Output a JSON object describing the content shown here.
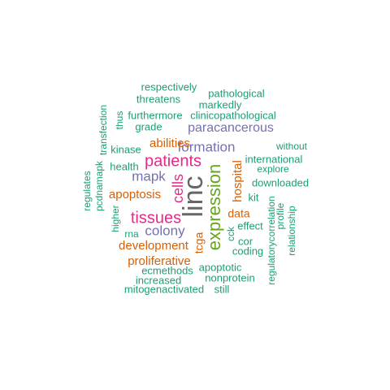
{
  "colors": {
    "teal": "#1b9e77",
    "orange": "#d95f02",
    "purple": "#7570b3",
    "pink": "#e7298a",
    "green": "#66a61e",
    "gray": "#666666"
  },
  "words": [
    {
      "text": "linc",
      "color": "gray"
    },
    {
      "text": "expression",
      "color": "green"
    },
    {
      "text": "patients",
      "color": "pink"
    },
    {
      "text": "tissues",
      "color": "pink"
    },
    {
      "text": "cells",
      "color": "pink"
    },
    {
      "text": "formation",
      "color": "purple"
    },
    {
      "text": "paracancerous",
      "color": "purple"
    },
    {
      "text": "colony",
      "color": "purple"
    },
    {
      "text": "mapk",
      "color": "purple"
    },
    {
      "text": "apoptosis",
      "color": "orange"
    },
    {
      "text": "development",
      "color": "orange"
    },
    {
      "text": "proliferative",
      "color": "orange"
    },
    {
      "text": "abilities",
      "color": "orange"
    },
    {
      "text": "hospital",
      "color": "orange"
    },
    {
      "text": "data",
      "color": "orange"
    },
    {
      "text": "tcga",
      "color": "orange"
    },
    {
      "text": "respectively",
      "color": "teal"
    },
    {
      "text": "pathological",
      "color": "teal"
    },
    {
      "text": "threatens",
      "color": "teal"
    },
    {
      "text": "markedly",
      "color": "teal"
    },
    {
      "text": "furthermore",
      "color": "teal"
    },
    {
      "text": "clinicopathological",
      "color": "teal"
    },
    {
      "text": "grade",
      "color": "teal"
    },
    {
      "text": "thus",
      "color": "teal"
    },
    {
      "text": "transfection",
      "color": "teal"
    },
    {
      "text": "kinase",
      "color": "teal"
    },
    {
      "text": "health",
      "color": "teal"
    },
    {
      "text": "pcdnamapk",
      "color": "teal"
    },
    {
      "text": "regulates",
      "color": "teal"
    },
    {
      "text": "higher",
      "color": "teal"
    },
    {
      "text": "rna",
      "color": "teal"
    },
    {
      "text": "without",
      "color": "teal"
    },
    {
      "text": "international",
      "color": "teal"
    },
    {
      "text": "explore",
      "color": "teal"
    },
    {
      "text": "downloaded",
      "color": "teal"
    },
    {
      "text": "kit",
      "color": "teal"
    },
    {
      "text": "effect",
      "color": "teal"
    },
    {
      "text": "cck",
      "color": "teal"
    },
    {
      "text": "cor",
      "color": "teal"
    },
    {
      "text": "coding",
      "color": "teal"
    },
    {
      "text": "profile",
      "color": "teal"
    },
    {
      "text": "relationship",
      "color": "teal"
    },
    {
      "text": "regulatorycorrelation",
      "color": "teal"
    },
    {
      "text": "ecmethods",
      "color": "teal"
    },
    {
      "text": "apoptotic",
      "color": "teal"
    },
    {
      "text": "increased",
      "color": "teal"
    },
    {
      "text": "nonprotein",
      "color": "teal"
    },
    {
      "text": "mitogenactivated",
      "color": "teal"
    },
    {
      "text": "still",
      "color": "teal"
    }
  ]
}
